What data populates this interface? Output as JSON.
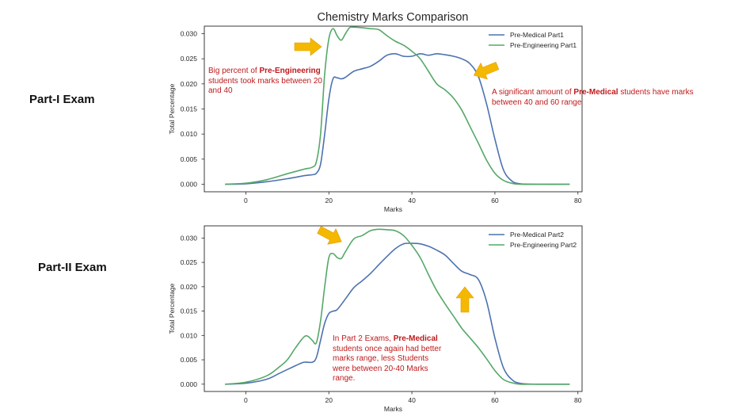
{
  "title": "Chemistry Marks Comparison",
  "colors": {
    "pre_medical": "#4c72b0",
    "pre_engineering": "#55a868",
    "annotation": "#c0191b",
    "arrow": "#f5b800"
  },
  "panels": [
    {
      "label": "Part-I Exam"
    },
    {
      "label": "Part-II Exam"
    }
  ],
  "annotations": {
    "a1": {
      "pre": "Big percent of ",
      "bold": "Pre-Engineering",
      "post": " students took marks between 20 and 40"
    },
    "a2": {
      "pre": "A significant amount of ",
      "bold": "Pre-Medical",
      "post": " students have marks between 40 and 60 range"
    },
    "a3": {
      "pre": "In Part 2 Exams, ",
      "bold": "Pre-Medical",
      "post": " students once again had better marks range, less Students were between 20-40 Marks range."
    }
  },
  "chart_data": [
    {
      "type": "line",
      "xlabel": "Marks",
      "ylabel": "Total Percentage",
      "xlim": [
        -10,
        81
      ],
      "ylim": [
        -0.0015,
        0.0315
      ],
      "xticks": [
        0,
        20,
        40,
        60,
        80
      ],
      "yticks": [
        0.0,
        0.005,
        0.01,
        0.015,
        0.02,
        0.025,
        0.03
      ],
      "legend_position": "top-right",
      "series": [
        {
          "name": "Pre-Medical Part1",
          "color": "#4c72b0",
          "points": [
            [
              -5,
              0
            ],
            [
              0,
              0.0001
            ],
            [
              5,
              0.0005
            ],
            [
              10,
              0.0011
            ],
            [
              14,
              0.0017
            ],
            [
              16,
              0.0019
            ],
            [
              17,
              0.0022
            ],
            [
              18,
              0.004
            ],
            [
              19,
              0.01
            ],
            [
              20,
              0.017
            ],
            [
              21,
              0.021
            ],
            [
              22,
              0.0212
            ],
            [
              23,
              0.021
            ],
            [
              24,
              0.0213
            ],
            [
              26,
              0.0225
            ],
            [
              28,
              0.023
            ],
            [
              30,
              0.0235
            ],
            [
              32,
              0.0245
            ],
            [
              34,
              0.0257
            ],
            [
              36,
              0.026
            ],
            [
              38,
              0.0255
            ],
            [
              40,
              0.0255
            ],
            [
              42,
              0.026
            ],
            [
              44,
              0.0257
            ],
            [
              46,
              0.026
            ],
            [
              48,
              0.0258
            ],
            [
              50,
              0.0255
            ],
            [
              52,
              0.025
            ],
            [
              54,
              0.024
            ],
            [
              56,
              0.0215
            ],
            [
              58,
              0.016
            ],
            [
              60,
              0.009
            ],
            [
              62,
              0.003
            ],
            [
              64,
              0.0007
            ],
            [
              66,
              0.0001
            ],
            [
              70,
              0
            ],
            [
              78,
              0
            ]
          ]
        },
        {
          "name": "Pre-Engineering Part1",
          "color": "#55a868",
          "points": [
            [
              -5,
              0
            ],
            [
              0,
              0.0002
            ],
            [
              5,
              0.0009
            ],
            [
              10,
              0.0021
            ],
            [
              14,
              0.003
            ],
            [
              16,
              0.0034
            ],
            [
              17,
              0.0045
            ],
            [
              18,
              0.01
            ],
            [
              19,
              0.022
            ],
            [
              20,
              0.029
            ],
            [
              21,
              0.031
            ],
            [
              22,
              0.0296
            ],
            [
              23,
              0.0287
            ],
            [
              24,
              0.03
            ],
            [
              25,
              0.0312
            ],
            [
              26,
              0.0313
            ],
            [
              28,
              0.0312
            ],
            [
              30,
              0.031
            ],
            [
              32,
              0.0308
            ],
            [
              34,
              0.0296
            ],
            [
              36,
              0.0285
            ],
            [
              38,
              0.0277
            ],
            [
              40,
              0.0265
            ],
            [
              42,
              0.025
            ],
            [
              44,
              0.0225
            ],
            [
              46,
              0.02
            ],
            [
              48,
              0.0188
            ],
            [
              50,
              0.0172
            ],
            [
              52,
              0.0148
            ],
            [
              54,
              0.0115
            ],
            [
              56,
              0.0082
            ],
            [
              58,
              0.0048
            ],
            [
              60,
              0.0022
            ],
            [
              62,
              0.0008
            ],
            [
              64,
              0.0002
            ],
            [
              66,
              0
            ],
            [
              70,
              0
            ],
            [
              78,
              0
            ]
          ]
        }
      ]
    },
    {
      "type": "line",
      "xlabel": "Marks",
      "ylabel": "Total Percentage",
      "xlim": [
        -10,
        81
      ],
      "ylim": [
        -0.0015,
        0.0325
      ],
      "xticks": [
        0,
        20,
        40,
        60,
        80
      ],
      "yticks": [
        0.0,
        0.005,
        0.01,
        0.015,
        0.02,
        0.025,
        0.03
      ],
      "legend_position": "top-right",
      "series": [
        {
          "name": "Pre-Medical Part2",
          "color": "#4c72b0",
          "points": [
            [
              -5,
              0
            ],
            [
              0,
              0.0002
            ],
            [
              5,
              0.001
            ],
            [
              8,
              0.0022
            ],
            [
              10,
              0.003
            ],
            [
              12,
              0.0038
            ],
            [
              14,
              0.0045
            ],
            [
              16,
              0.0045
            ],
            [
              17,
              0.0055
            ],
            [
              18,
              0.009
            ],
            [
              19,
              0.0125
            ],
            [
              20,
              0.0145
            ],
            [
              21,
              0.015
            ],
            [
              22,
              0.0153
            ],
            [
              24,
              0.0175
            ],
            [
              26,
              0.0198
            ],
            [
              28,
              0.0212
            ],
            [
              30,
              0.0227
            ],
            [
              32,
              0.0245
            ],
            [
              34,
              0.0262
            ],
            [
              36,
              0.0278
            ],
            [
              38,
              0.0288
            ],
            [
              40,
              0.0289
            ],
            [
              42,
              0.0288
            ],
            [
              44,
              0.0283
            ],
            [
              46,
              0.0275
            ],
            [
              48,
              0.0265
            ],
            [
              50,
              0.0248
            ],
            [
              52,
              0.0232
            ],
            [
              54,
              0.0225
            ],
            [
              56,
              0.0215
            ],
            [
              58,
              0.017
            ],
            [
              60,
              0.0095
            ],
            [
              62,
              0.0035
            ],
            [
              64,
              0.001
            ],
            [
              66,
              0.0002
            ],
            [
              70,
              0
            ],
            [
              78,
              0
            ]
          ]
        },
        {
          "name": "Pre-Engineering Part2",
          "color": "#55a868",
          "points": [
            [
              -5,
              0
            ],
            [
              0,
              0.0004
            ],
            [
              5,
              0.0017
            ],
            [
              8,
              0.0035
            ],
            [
              10,
              0.005
            ],
            [
              12,
              0.0075
            ],
            [
              14,
              0.0097
            ],
            [
              15,
              0.0098
            ],
            [
              16,
              0.009
            ],
            [
              17,
              0.0085
            ],
            [
              18,
              0.013
            ],
            [
              19,
              0.02
            ],
            [
              20,
              0.026
            ],
            [
              21,
              0.0268
            ],
            [
              22,
              0.026
            ],
            [
              23,
              0.0258
            ],
            [
              24,
              0.0272
            ],
            [
              26,
              0.0298
            ],
            [
              28,
              0.0305
            ],
            [
              30,
              0.0315
            ],
            [
              32,
              0.0318
            ],
            [
              34,
              0.0317
            ],
            [
              36,
              0.0315
            ],
            [
              38,
              0.0305
            ],
            [
              40,
              0.0285
            ],
            [
              42,
              0.026
            ],
            [
              44,
              0.0225
            ],
            [
              46,
              0.0192
            ],
            [
              48,
              0.0165
            ],
            [
              50,
              0.014
            ],
            [
              52,
              0.0115
            ],
            [
              54,
              0.0095
            ],
            [
              56,
              0.0075
            ],
            [
              58,
              0.0052
            ],
            [
              60,
              0.0028
            ],
            [
              62,
              0.001
            ],
            [
              64,
              0.0003
            ],
            [
              66,
              0
            ],
            [
              70,
              0
            ],
            [
              78,
              0
            ]
          ]
        }
      ]
    }
  ]
}
